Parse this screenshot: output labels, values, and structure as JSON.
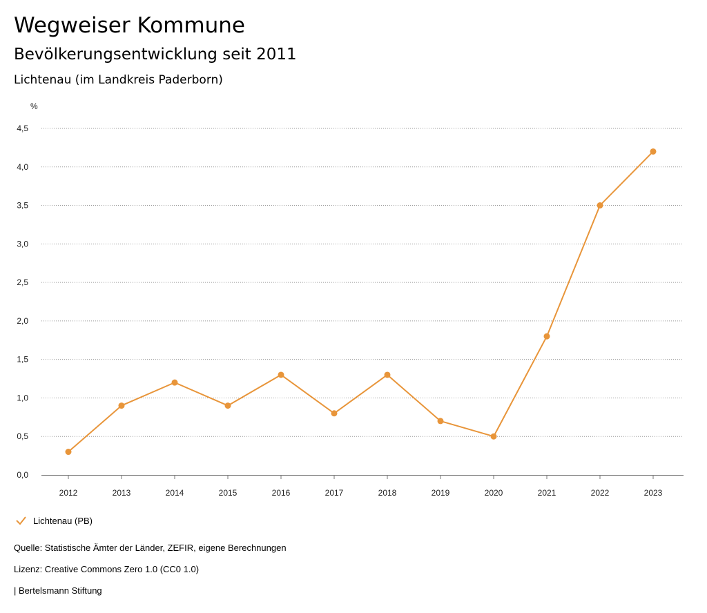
{
  "header": {
    "title": "Wegweiser Kommune",
    "subtitle": "Bevölkerungsentwicklung seit 2011",
    "region": "Lichtenau (im Landkreis Paderborn)"
  },
  "chart_data": {
    "type": "line",
    "ylabel": "%",
    "x": [
      "2012",
      "2013",
      "2014",
      "2015",
      "2016",
      "2017",
      "2018",
      "2019",
      "2020",
      "2021",
      "2022",
      "2023"
    ],
    "series": [
      {
        "name": "Lichtenau (PB)",
        "values": [
          0.3,
          0.9,
          1.2,
          0.9,
          1.3,
          0.8,
          1.3,
          0.7,
          0.5,
          1.8,
          3.5,
          4.2
        ]
      }
    ],
    "ylim": [
      0,
      4.5
    ],
    "yticks": [
      "0,0",
      "0,5",
      "1,0",
      "1,5",
      "2,0",
      "2,5",
      "3,0",
      "3,5",
      "4,0",
      "4,5"
    ],
    "grid": true,
    "legend_position": "bottom-left",
    "line_color": "#E8953A"
  },
  "footer": {
    "source": "Quelle: Statistische Ämter der Länder, ZEFIR, eigene Berechnungen",
    "license": "Lizenz: Creative Commons Zero 1.0 (CC0 1.0)",
    "publisher": "| Bertelsmann Stiftung"
  }
}
